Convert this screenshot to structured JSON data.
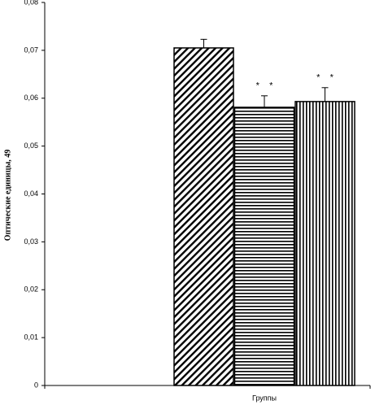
{
  "chart_data": {
    "type": "bar",
    "y_label": "Оптические единицы, 49",
    "x_label": "Группы",
    "categories": [
      null,
      null,
      null
    ],
    "values": [
      0.0705,
      0.0581,
      0.0593
    ],
    "errors": [
      0.0018,
      0.0024,
      0.0029
    ],
    "patterns": [
      "diagonal",
      "horizontal",
      "vertical"
    ],
    "annotations": [
      null,
      "*    *",
      "*    *"
    ],
    "color": "#000000",
    "ylim": [
      0,
      0.08
    ],
    "yticks": [
      0,
      {
        "value": 0.01,
        "label": "0,01"
      },
      {
        "value": 0.02,
        "label": "0,02"
      },
      {
        "value": 0.03,
        "label": "0,03"
      },
      {
        "value": 0.04,
        "label": "0,04"
      },
      {
        "value": 0.05,
        "label": "0,05"
      },
      {
        "value": 0.06,
        "label": "0,06"
      },
      {
        "value": 0.07,
        "label": "0,07"
      },
      {
        "value": 0.08,
        "label": "0,08"
      }
    ],
    "grid": false
  }
}
